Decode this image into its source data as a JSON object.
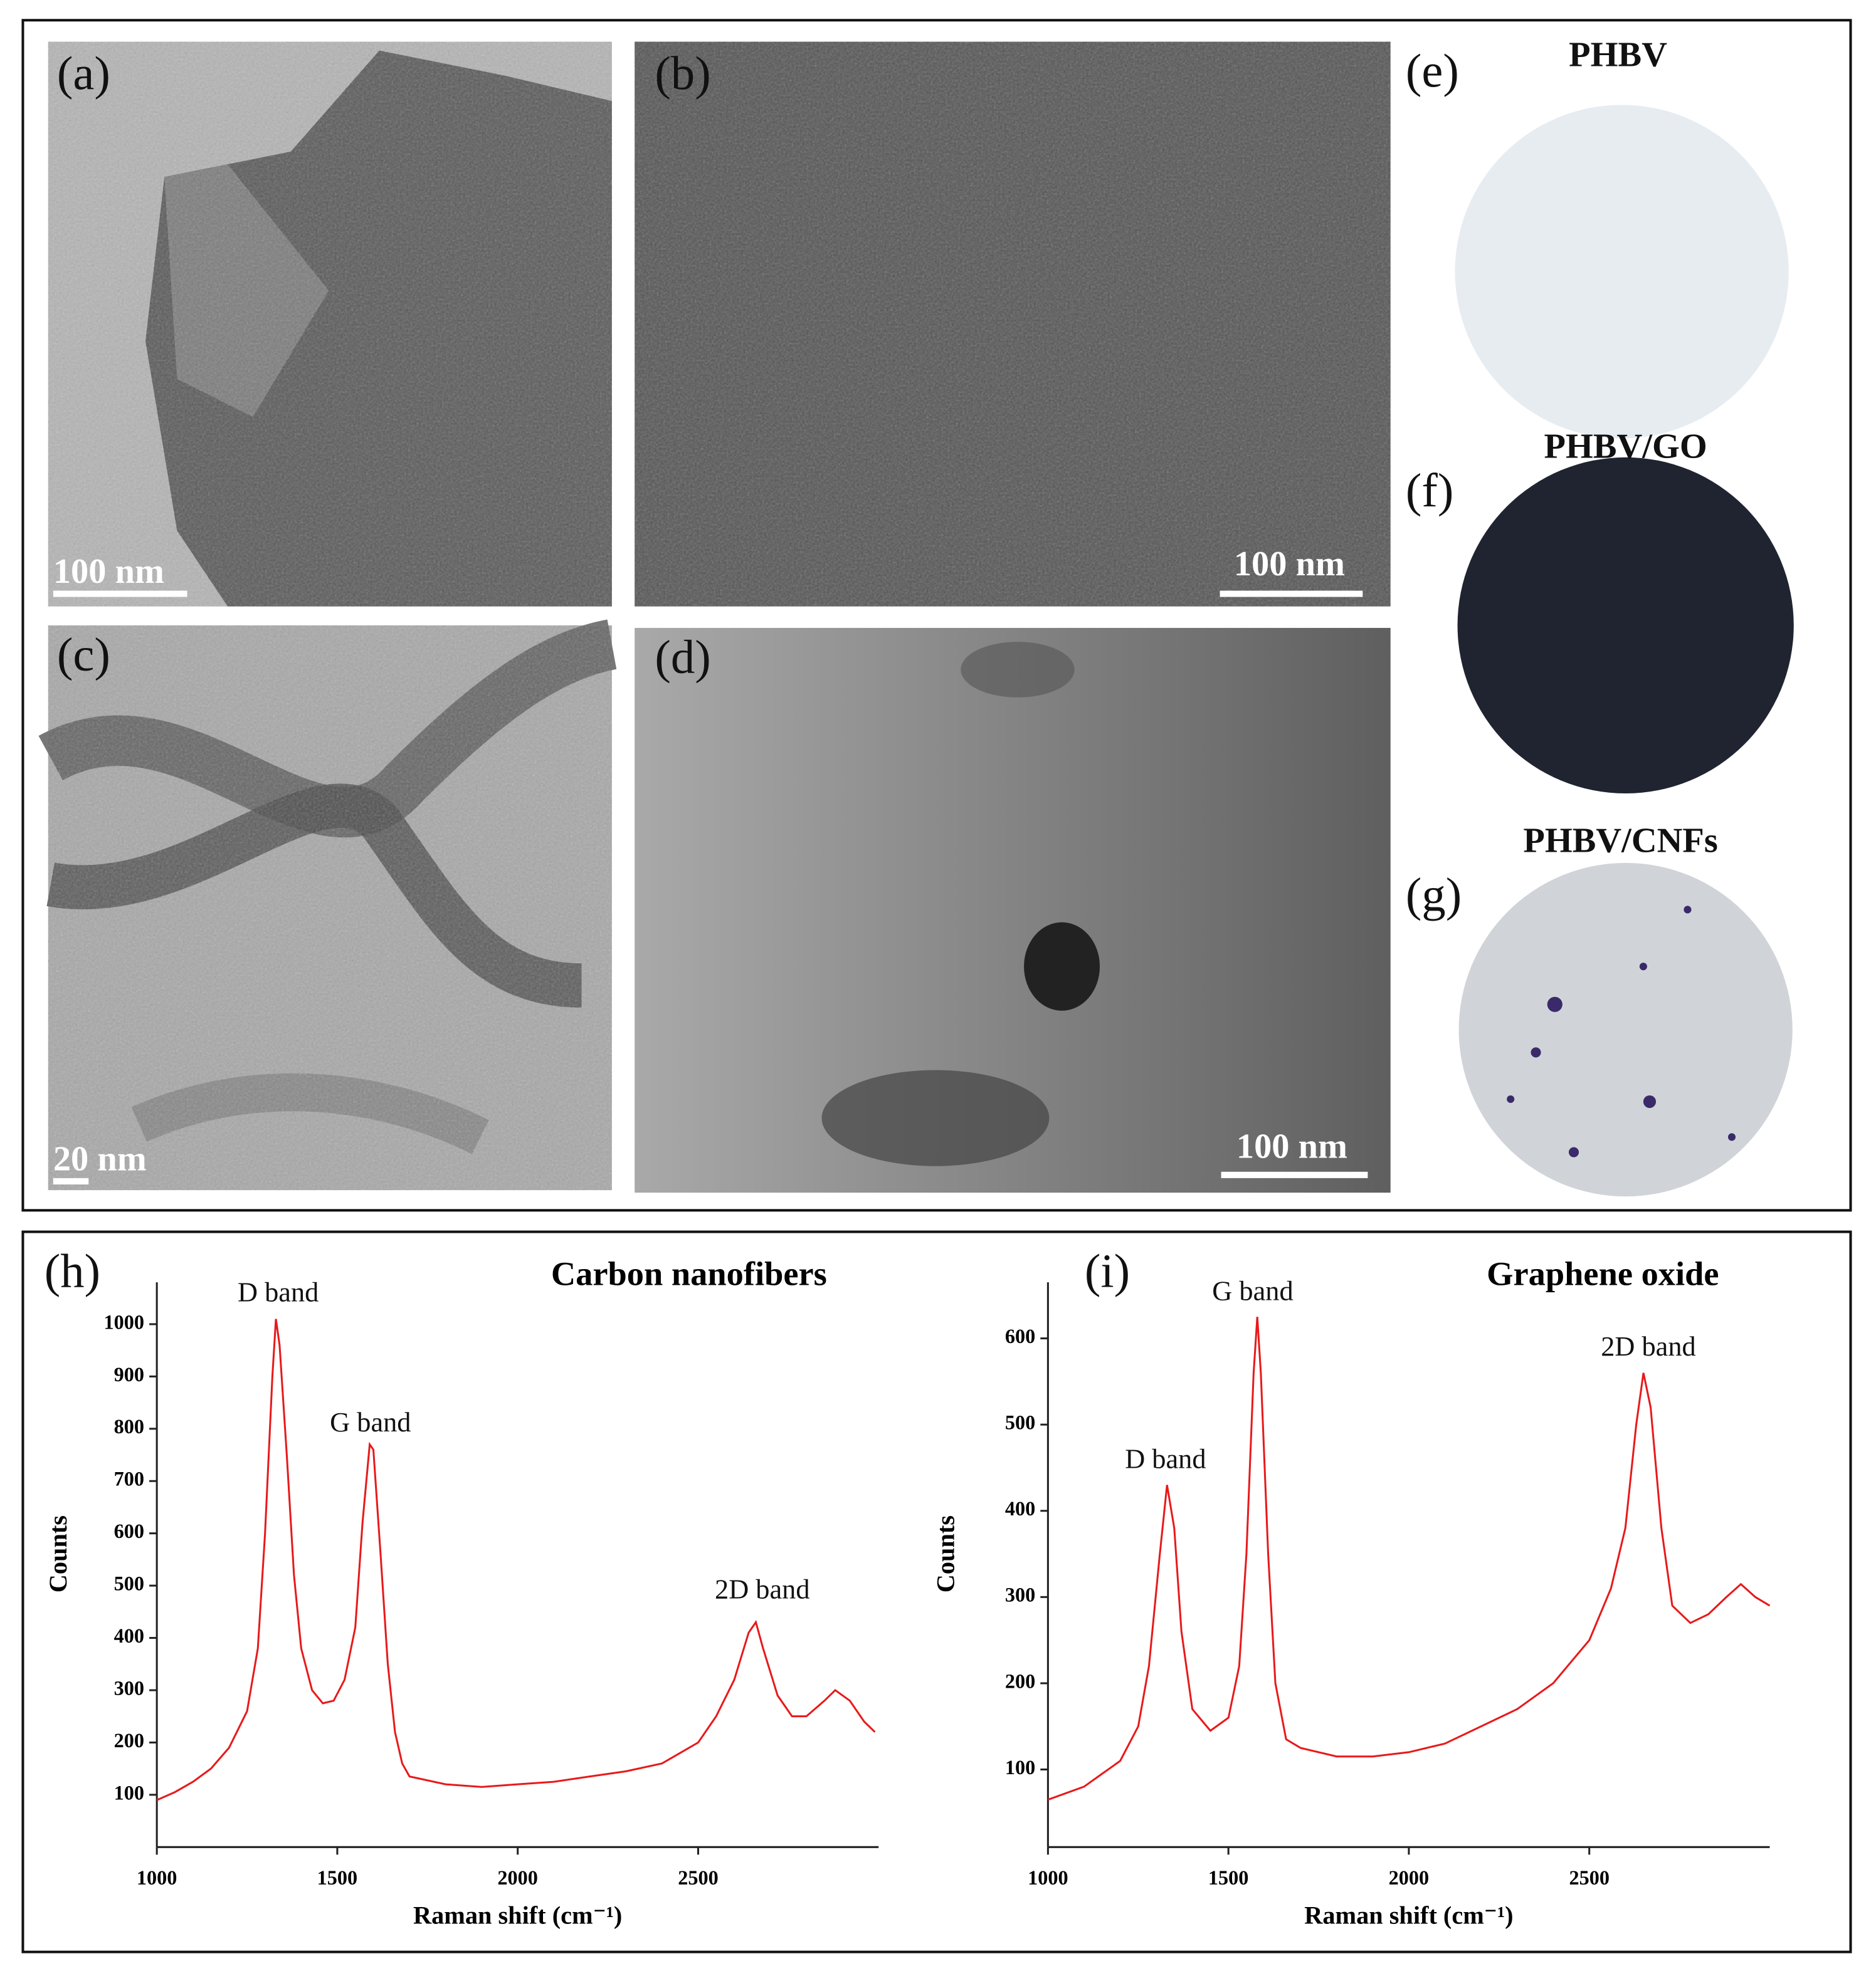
{
  "panels": [
    {
      "label": "(a)",
      "scale_bar": "100 nm"
    },
    {
      "label": "(b)",
      "scale_bar": "100 nm"
    },
    {
      "label": "(c)",
      "scale_bar": "20 nm"
    },
    {
      "label": "(d)",
      "scale_bar": "100 nm"
    },
    {
      "label": "(e)",
      "title": "PHBV"
    },
    {
      "label": "(f)",
      "title": "PHBV/GO"
    },
    {
      "label": "(g)",
      "title": "PHBV/CNFs"
    }
  ],
  "chart_data": [
    {
      "type": "line",
      "label": "(h)",
      "title": "Carbon nanofibers",
      "x_label": "Raman shift (cm⁻¹)",
      "y_label": "Counts",
      "color": "#e8191a",
      "xlim": [
        1000,
        3000
      ],
      "ylim": [
        0,
        1080
      ],
      "xticks": [
        1000,
        1500,
        2000,
        2500
      ],
      "yticks": [
        100,
        200,
        300,
        400,
        500,
        600,
        700,
        800,
        900,
        1000
      ],
      "annotations": [
        "D band",
        "G band",
        "2D band"
      ],
      "x": [
        1000,
        1050,
        1100,
        1150,
        1200,
        1250,
        1280,
        1300,
        1320,
        1330,
        1340,
        1360,
        1380,
        1400,
        1430,
        1460,
        1490,
        1520,
        1550,
        1570,
        1590,
        1600,
        1620,
        1640,
        1660,
        1680,
        1700,
        1800,
        1900,
        2000,
        2100,
        2200,
        2300,
        2400,
        2500,
        2550,
        2600,
        2640,
        2660,
        2680,
        2720,
        2760,
        2800,
        2850,
        2880,
        2920,
        2960,
        2990
      ],
      "values": [
        90,
        105,
        125,
        150,
        190,
        260,
        380,
        600,
        900,
        1010,
        960,
        750,
        520,
        380,
        300,
        275,
        280,
        320,
        420,
        620,
        770,
        760,
        560,
        350,
        220,
        160,
        135,
        120,
        115,
        120,
        125,
        135,
        145,
        160,
        200,
        250,
        320,
        410,
        430,
        380,
        290,
        250,
        250,
        280,
        300,
        280,
        240,
        220
      ]
    },
    {
      "type": "line",
      "label": "(i)",
      "title": "Graphene oxide",
      "x_label": "Raman shift (cm⁻¹)",
      "y_label": "Counts",
      "color": "#e8191a",
      "xlim": [
        1000,
        3000
      ],
      "ylim": [
        10,
        665
      ],
      "xticks": [
        1000,
        1500,
        2000,
        2500
      ],
      "yticks": [
        100,
        200,
        300,
        400,
        500,
        600
      ],
      "annotations": [
        "G band",
        "D band",
        "2D band"
      ],
      "x": [
        1000,
        1100,
        1150,
        1200,
        1250,
        1280,
        1310,
        1330,
        1350,
        1370,
        1400,
        1450,
        1500,
        1530,
        1550,
        1570,
        1580,
        1590,
        1610,
        1630,
        1660,
        1700,
        1800,
        1900,
        2000,
        2100,
        2200,
        2300,
        2400,
        2500,
        2560,
        2600,
        2630,
        2650,
        2670,
        2700,
        2730,
        2780,
        2830,
        2880,
        2920,
        2960,
        3000
      ],
      "values": [
        65,
        80,
        95,
        110,
        150,
        220,
        350,
        430,
        380,
        260,
        170,
        145,
        160,
        220,
        350,
        560,
        625,
        560,
        350,
        200,
        135,
        125,
        115,
        115,
        120,
        130,
        150,
        170,
        200,
        250,
        310,
        380,
        500,
        560,
        520,
        380,
        290,
        270,
        280,
        300,
        315,
        300,
        290
      ]
    }
  ]
}
